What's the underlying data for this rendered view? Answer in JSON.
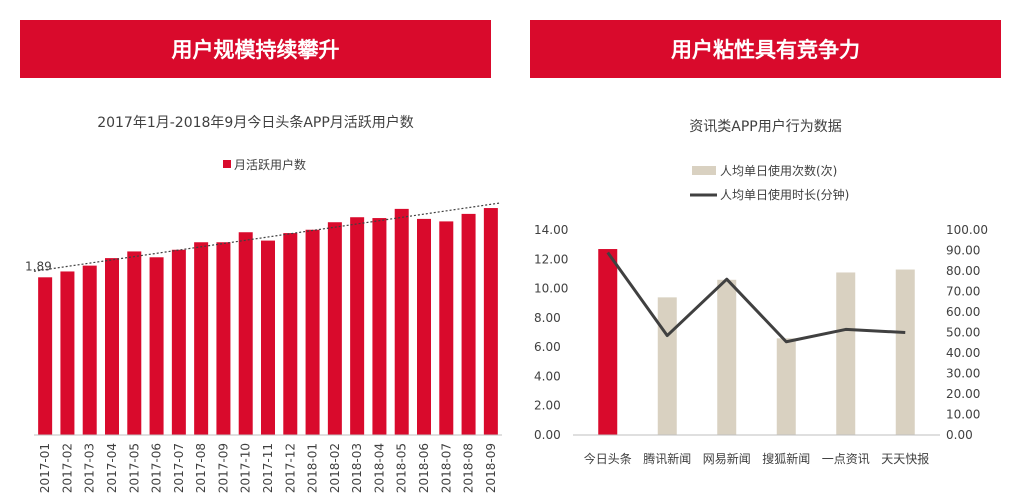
{
  "banners": {
    "left": "用户规模持续攀升",
    "right": "用户粘性具有竞争力"
  },
  "colors": {
    "red": "#d90a2c",
    "beige": "#d9d1c1",
    "line": "#404040"
  },
  "chart_data": [
    {
      "type": "bar",
      "title": "2017年1月-2018年9月今日头条APP月活跃用户数",
      "legend": [
        "月活跃用户数"
      ],
      "legend_position": "top-center",
      "categories": [
        "2017-01",
        "2017-02",
        "2017-03",
        "2017-04",
        "2017-05",
        "2017-06",
        "2017-07",
        "2017-08",
        "2017-09",
        "2017-10",
        "2017-11",
        "2017-12",
        "2018-01",
        "2018-02",
        "2018-03",
        "2018-04",
        "2018-05",
        "2018-06",
        "2018-07",
        "2018-08",
        "2018-09"
      ],
      "series": [
        {
          "name": "月活跃用户数",
          "values": [
            1.89,
            1.96,
            2.03,
            2.12,
            2.2,
            2.13,
            2.22,
            2.31,
            2.31,
            2.43,
            2.33,
            2.42,
            2.46,
            2.55,
            2.61,
            2.6,
            2.71,
            2.59,
            2.56,
            2.65,
            2.72
          ]
        }
      ],
      "data_labels": {
        "2017-01": "1.89"
      },
      "trendline": "linear, dotted",
      "ylim": [
        0,
        3.2
      ],
      "grid": false
    },
    {
      "type": "bar",
      "subtype": "bar-line-dual-axis",
      "title": "资讯类APP用户行为数据",
      "legend": [
        "人均单日使用次数(次)",
        "人均单日使用时长(分钟)"
      ],
      "legend_position": "top-center",
      "categories": [
        "今日头条",
        "腾讯新闻",
        "网易新闻",
        "搜狐新闻",
        "一点资讯",
        "天天快报"
      ],
      "series": [
        {
          "name": "人均单日使用次数(次)",
          "axis": "left",
          "values": [
            12.7,
            9.4,
            10.6,
            6.6,
            11.1,
            11.3
          ]
        },
        {
          "name": "人均单日使用时长(分钟)",
          "axis": "right",
          "values": [
            89.0,
            48.5,
            76.0,
            45.5,
            51.5,
            50.0
          ]
        }
      ],
      "y_left": {
        "lim": [
          0,
          14
        ],
        "ticks": [
          "0.00",
          "2.00",
          "4.00",
          "6.00",
          "8.00",
          "10.00",
          "12.00",
          "14.00"
        ]
      },
      "y_right": {
        "lim": [
          0,
          100
        ],
        "ticks": [
          "0.00",
          "10.00",
          "20.00",
          "30.00",
          "40.00",
          "50.00",
          "60.00",
          "70.00",
          "80.00",
          "90.00",
          "100.00"
        ]
      },
      "grid": false
    }
  ]
}
